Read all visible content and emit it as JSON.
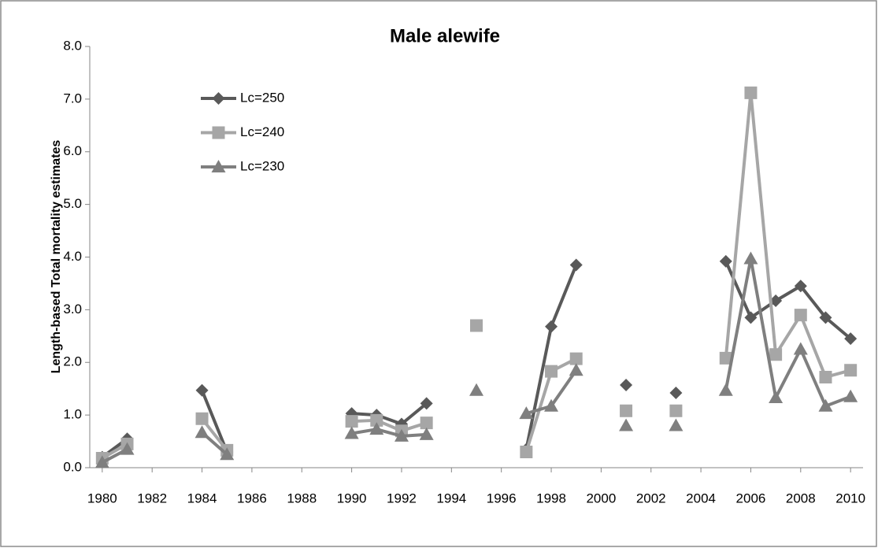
{
  "chart_data": {
    "type": "line",
    "title": "Male alewife",
    "y_label": "Length-based Total mortality estimates",
    "x": [
      1980,
      1981,
      1982,
      1983,
      1984,
      1985,
      1986,
      1987,
      1988,
      1989,
      1990,
      1991,
      1992,
      1993,
      1994,
      1995,
      1996,
      1997,
      1998,
      1999,
      2000,
      2001,
      2002,
      2003,
      2004,
      2005,
      2006,
      2007,
      2008,
      2009,
      2010
    ],
    "series": [
      {
        "name": "Lc=250",
        "color": "#595959",
        "marker": "diamond",
        "values": [
          0.2,
          0.55,
          null,
          null,
          1.47,
          0.3,
          null,
          null,
          null,
          null,
          1.03,
          1.0,
          0.83,
          1.22,
          null,
          null,
          null,
          0.35,
          2.68,
          3.85,
          null,
          1.57,
          null,
          1.42,
          null,
          3.92,
          2.85,
          3.17,
          3.45,
          2.85,
          2.45
        ]
      },
      {
        "name": "Lc=240",
        "color": "#a6a6a6",
        "marker": "square",
        "values": [
          0.18,
          0.45,
          null,
          null,
          0.93,
          0.33,
          null,
          null,
          null,
          null,
          0.88,
          0.9,
          0.7,
          0.85,
          null,
          2.7,
          null,
          0.3,
          1.83,
          2.07,
          null,
          1.08,
          null,
          1.08,
          null,
          2.08,
          7.12,
          2.15,
          2.9,
          1.72,
          1.85
        ]
      },
      {
        "name": "Lc=230",
        "color": "#7f7f7f",
        "marker": "triangle",
        "values": [
          0.1,
          0.35,
          null,
          null,
          0.67,
          0.25,
          null,
          null,
          null,
          null,
          0.65,
          0.73,
          0.6,
          0.63,
          null,
          1.47,
          null,
          1.03,
          1.17,
          1.85,
          null,
          0.8,
          null,
          0.8,
          null,
          1.47,
          3.97,
          1.33,
          2.25,
          1.17,
          1.35
        ]
      }
    ],
    "xlim": [
      1979.5,
      2010.5
    ],
    "xticks": [
      1980,
      1982,
      1984,
      1986,
      1988,
      1990,
      1992,
      1994,
      1996,
      1998,
      2000,
      2002,
      2004,
      2006,
      2008,
      2010
    ],
    "ylim": [
      0,
      8
    ],
    "yticks": [
      {
        "value": 0,
        "label": "0.0"
      },
      {
        "value": 1,
        "label": "1.0"
      },
      {
        "value": 2,
        "label": "2.0"
      },
      {
        "value": 3,
        "label": "3.0"
      },
      {
        "value": 4,
        "label": "4.0"
      },
      {
        "value": 5,
        "label": "5.0"
      },
      {
        "value": 6,
        "label": "6.0"
      },
      {
        "value": 7,
        "label": "7.0"
      },
      {
        "value": 8,
        "label": "8.0"
      }
    ],
    "grid": false,
    "legend": "upper left"
  }
}
